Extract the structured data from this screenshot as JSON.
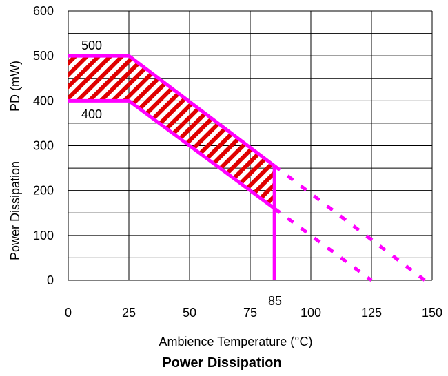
{
  "chart_data": {
    "type": "line",
    "title": "Power Dissipation",
    "xlabel": "Ambience Temperature (°C)",
    "ylabel": "Power Dissipation",
    "ylabel_symbol": "PD (mW)",
    "xlim": [
      0,
      150
    ],
    "ylim": [
      0,
      600
    ],
    "x_ticks": [
      "0",
      "25",
      "50",
      "75",
      "100",
      "125",
      "150"
    ],
    "y_ticks": [
      "0",
      "100",
      "200",
      "300",
      "400",
      "500",
      "600"
    ],
    "grid": true,
    "series": [
      {
        "points": [
          [
            0,
            500
          ],
          [
            25,
            500
          ],
          [
            85,
            255
          ]
        ],
        "style": "solid"
      },
      {
        "points": [
          [
            0,
            400
          ],
          [
            25,
            400
          ],
          [
            85,
            160
          ]
        ],
        "style": "solid"
      },
      {
        "points": [
          [
            85,
            255
          ],
          [
            85,
            0
          ]
        ],
        "style": "solid"
      },
      {
        "points": [
          [
            85,
            255
          ],
          [
            147,
            0
          ]
        ],
        "style": "dashed"
      },
      {
        "points": [
          [
            85,
            160
          ],
          [
            125,
            0
          ]
        ],
        "style": "dashed"
      }
    ],
    "annotations": [
      "500",
      "400",
      "85"
    ],
    "colors": {
      "line": "#ff00ff",
      "hatch": "#e00000",
      "grid": "#000000"
    }
  }
}
